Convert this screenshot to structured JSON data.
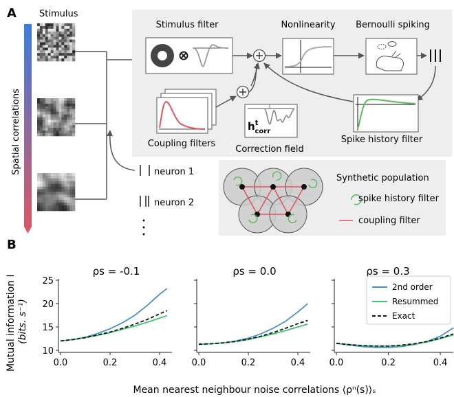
{
  "panel_a": {
    "letter": "A",
    "stimulus_title": "Stimulus",
    "spatial_axis_label": "Spatial correlations",
    "stimulus_filter_label": "Stimulus filter",
    "nonlinearity_label": "Nonlinearity",
    "bernoulli_label": "Bernoulli spiking",
    "coupling_filters_label": "Coupling filters",
    "correction_field_label": "Correction field",
    "correction_h": "h",
    "correction_sup": "t",
    "correction_sub": "corr",
    "spike_history_label": "Spike history filter",
    "neuron1_label": "neuron 1",
    "neuron2_label": "neuron 2",
    "synthetic_title": "Synthetic population",
    "legend_spike_history": "spike history filter",
    "legend_coupling": "coupling filter",
    "colors": {
      "gradient_top": "#3a7de0",
      "gradient_bottom": "#e0555f",
      "coupling": "#e0555f",
      "spike_history": "#5cb85c",
      "panel_bg": "#eeeeee"
    }
  },
  "panel_b": {
    "letter": "B",
    "ylabel_line1": "Mutual information I",
    "ylabel_line2": "(bits. s⁻¹)",
    "xlabel": "Mean nearest neighbour noise correlations ⟨ρⁿ(s)⟩ₛ",
    "yticks": [
      "10",
      "15",
      "20",
      "25"
    ],
    "xticks": [
      "0.0",
      "0.2",
      "0.4"
    ],
    "legend": [
      "2nd order",
      "Resummed",
      "Exact"
    ]
  },
  "chart_data": [
    {
      "type": "line",
      "title": "ρs = -0.1",
      "xlim": [
        0,
        0.45
      ],
      "ylim": [
        10,
        25
      ],
      "x": [
        0,
        0.05,
        0.1,
        0.15,
        0.2,
        0.25,
        0.3,
        0.35,
        0.4,
        0.43
      ],
      "series": [
        {
          "name": "2nd order",
          "color": "#4a90c8",
          "dash": "",
          "values": [
            12.0,
            12.3,
            12.8,
            13.6,
            14.6,
            15.9,
            17.5,
            19.6,
            22.0,
            23.2
          ]
        },
        {
          "name": "Resummed",
          "color": "#3cc46a",
          "dash": "",
          "values": [
            12.0,
            12.3,
            12.7,
            13.2,
            13.8,
            14.5,
            15.2,
            16.0,
            16.9,
            17.4
          ]
        },
        {
          "name": "Exact",
          "color": "#111111",
          "dash": "5,3",
          "values": [
            12.0,
            12.3,
            12.7,
            13.3,
            13.9,
            14.7,
            15.6,
            16.6,
            17.8,
            18.5
          ]
        }
      ]
    },
    {
      "type": "line",
      "title": "ρs = 0.0",
      "xlim": [
        0,
        0.45
      ],
      "ylim": [
        10,
        25
      ],
      "x": [
        0,
        0.05,
        0.1,
        0.15,
        0.2,
        0.25,
        0.3,
        0.35,
        0.4,
        0.44
      ],
      "series": [
        {
          "name": "2nd order",
          "color": "#4a90c8",
          "dash": "",
          "values": [
            11.3,
            11.4,
            11.6,
            12.0,
            12.6,
            13.5,
            14.7,
            16.2,
            18.2,
            20.0
          ]
        },
        {
          "name": "Resummed",
          "color": "#3cc46a",
          "dash": "",
          "values": [
            11.3,
            11.4,
            11.6,
            11.9,
            12.3,
            12.9,
            13.5,
            14.2,
            15.0,
            15.6
          ]
        },
        {
          "name": "Exact",
          "color": "#111111",
          "dash": "5,3",
          "values": [
            11.3,
            11.4,
            11.6,
            11.9,
            12.4,
            13.0,
            13.8,
            14.7,
            15.7,
            16.4
          ]
        }
      ]
    },
    {
      "type": "line",
      "title": "ρs = 0.3",
      "xlim": [
        0,
        0.45
      ],
      "ylim": [
        10,
        25
      ],
      "x": [
        0,
        0.05,
        0.1,
        0.15,
        0.2,
        0.25,
        0.3,
        0.35,
        0.4,
        0.45
      ],
      "series": [
        {
          "name": "2nd order",
          "color": "#4a90c8",
          "dash": "",
          "values": [
            11.5,
            11.1,
            10.8,
            10.6,
            10.6,
            10.8,
            11.2,
            11.9,
            13.0,
            14.8
          ]
        },
        {
          "name": "Resummed",
          "color": "#3cc46a",
          "dash": "",
          "values": [
            11.5,
            11.2,
            11.0,
            10.9,
            10.9,
            11.0,
            11.3,
            11.8,
            12.5,
            13.3
          ]
        },
        {
          "name": "Exact",
          "color": "#111111",
          "dash": "5,3",
          "values": [
            11.5,
            11.2,
            11.0,
            10.9,
            10.9,
            11.1,
            11.4,
            11.9,
            12.6,
            13.5
          ]
        }
      ]
    }
  ]
}
